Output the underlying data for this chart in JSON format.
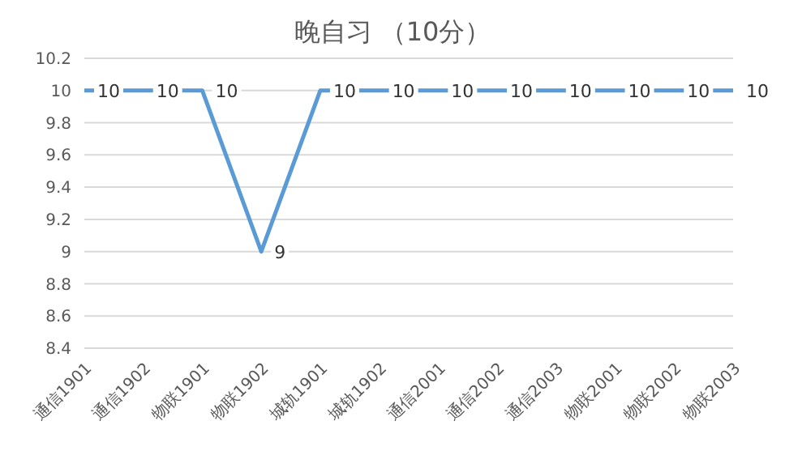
{
  "chart_data": {
    "type": "line",
    "title": "晚自习 （10分）",
    "categories": [
      "通信1901",
      "通信1902",
      "物联1901",
      "物联1902",
      "城轨1901",
      "城轨1902",
      "通信2001",
      "通信2002",
      "通信2003",
      "物联2001",
      "物联2002",
      "物联2003"
    ],
    "values": [
      10,
      10,
      10,
      9,
      10,
      10,
      10,
      10,
      10,
      10,
      10,
      10
    ],
    "color": "#5b9bd5",
    "ylim": [
      8.4,
      10.2
    ],
    "yticks": [
      8.4,
      8.6,
      8.8,
      9,
      9.2,
      9.4,
      9.6,
      9.8,
      10,
      10.2
    ],
    "grid": "y",
    "data_labels": true,
    "marker": "none"
  }
}
